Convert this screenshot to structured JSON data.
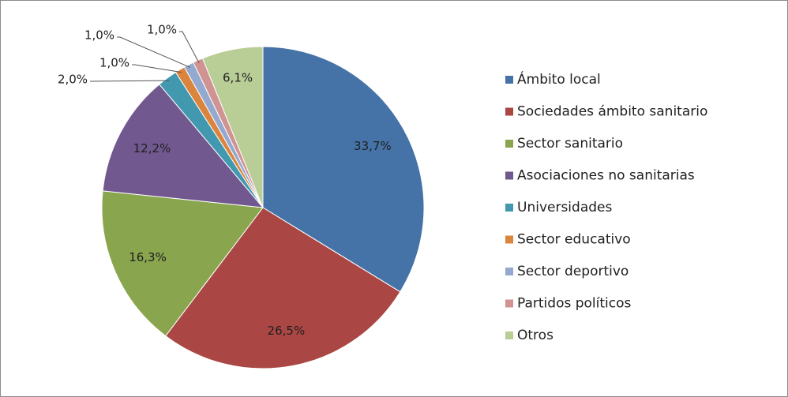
{
  "chart_data": {
    "type": "pie",
    "categories": [
      "Ámbito local",
      "Sociedades ámbito sanitario",
      "Sector sanitario",
      "Asociaciones no sanitarias",
      "Universidades",
      "Sector educativo",
      "Sector deportivo",
      "Partidos políticos",
      "Otros"
    ],
    "values": [
      33.7,
      26.5,
      16.3,
      12.2,
      2.0,
      1.0,
      1.0,
      1.0,
      6.1
    ],
    "value_labels": [
      "33,7%",
      "26,5%",
      "16,3%",
      "12,2%",
      "2,0%",
      "1,0%",
      "1,0%",
      "1,0%",
      "6,1%"
    ],
    "colors": [
      "#4572a7",
      "#aa4643",
      "#89a54e",
      "#71588f",
      "#4198af",
      "#db843d",
      "#93a9cf",
      "#d19392",
      "#b9cd96"
    ],
    "legend": "right"
  }
}
